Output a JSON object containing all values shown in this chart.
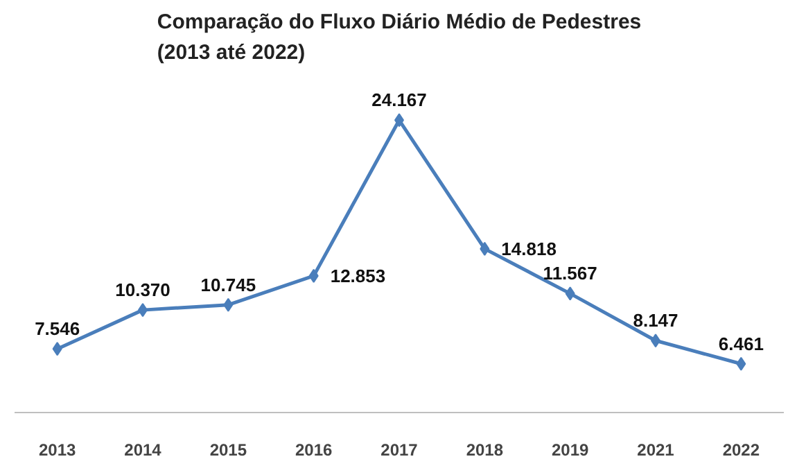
{
  "chart_data": {
    "type": "line",
    "title": "Comparação do Fluxo Diário Médio de Pedestres\n(2013 até 2022)",
    "categories": [
      "2013",
      "2014",
      "2015",
      "2016",
      "2017",
      "2018",
      "2019",
      "2021",
      "2022"
    ],
    "values": [
      7546,
      10370,
      10745,
      12853,
      24167,
      14818,
      11567,
      8147,
      6461
    ],
    "value_labels": [
      "7.546",
      "10.370",
      "10.745",
      "12.853",
      "24.167",
      "14.818",
      "11.567",
      "8.147",
      "6.461"
    ],
    "color": "#4a7ebb",
    "marker": "diamond",
    "line_style": "solid",
    "grid": false,
    "tick_labels": "x"
  }
}
